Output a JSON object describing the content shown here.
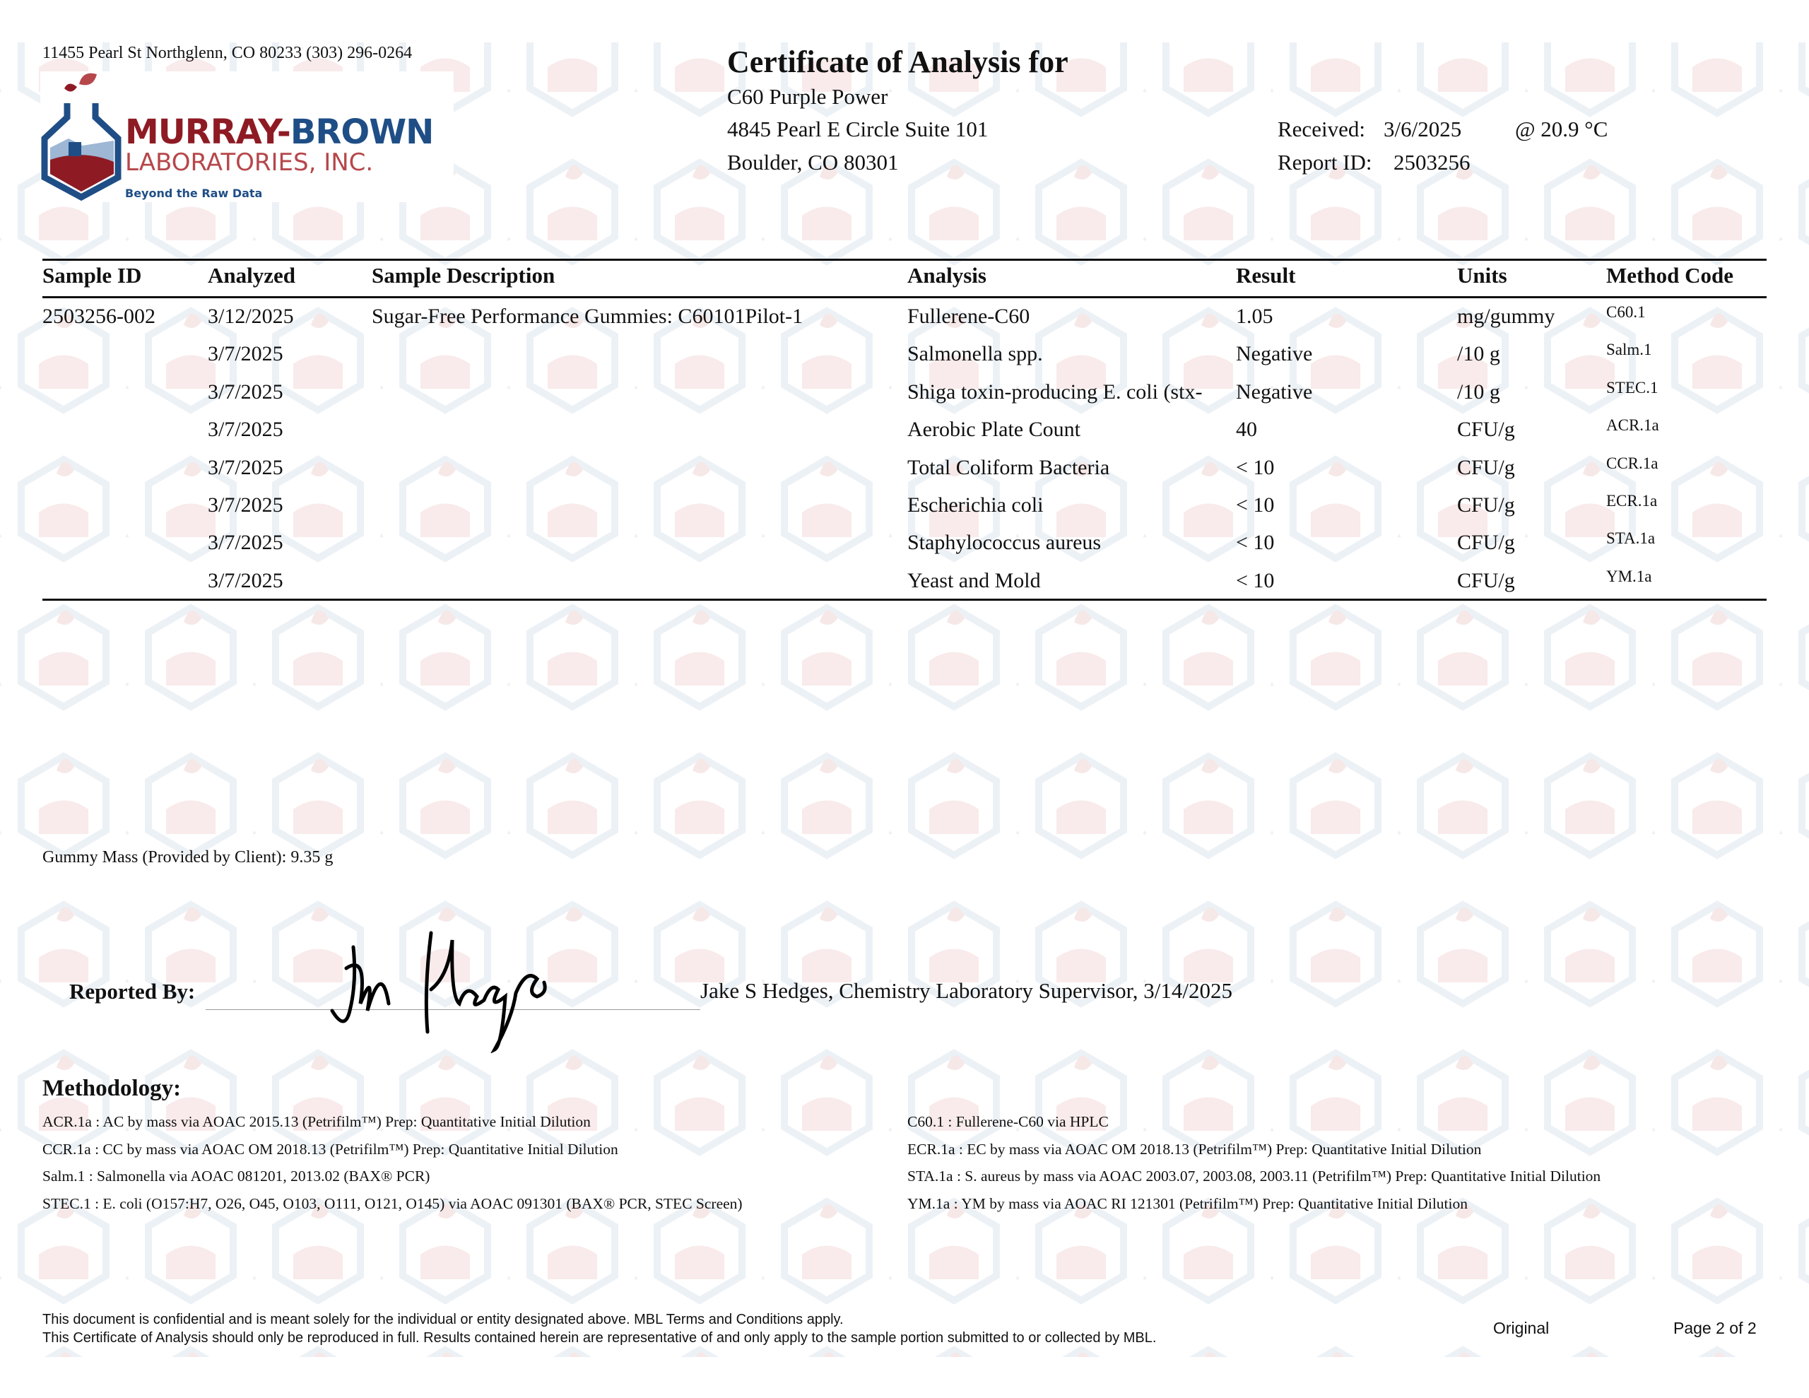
{
  "lab": {
    "address": "11455 Pearl St Northglenn, CO 80233 (303) 296-0264",
    "logo_name_1": "MURRAY-",
    "logo_name_2": "BROWN",
    "logo_sub": "LABORATORIES, INC.",
    "logo_tagline": "Beyond the Raw Data",
    "colors": {
      "red": "#8e1b24",
      "blue": "#1f4e86",
      "light_red": "#b6474b"
    }
  },
  "header": {
    "title": "Certificate of Analysis for",
    "client_name": "C60 Purple Power",
    "client_address_1": "4845 Pearl E Circle Suite 101",
    "client_address_2": "Boulder, CO 80301",
    "received_label": "Received:",
    "received_date": "3/6/2025",
    "received_temp": "@ 20.9 °C",
    "report_id_label": "Report ID:",
    "report_id": "2503256"
  },
  "table": {
    "columns": [
      "Sample ID",
      "Analyzed",
      "Sample Description",
      "Analysis",
      "Result",
      "Units",
      "Method Code"
    ],
    "rows": [
      {
        "sample_id": "2503256-002",
        "analyzed": "3/12/2025",
        "description": "Sugar-Free Performance Gummies: C60101Pilot-1",
        "analysis": "Fullerene-C60",
        "result": "1.05",
        "units": "mg/gummy",
        "method": "C60.1"
      },
      {
        "sample_id": "",
        "analyzed": "3/7/2025",
        "description": "",
        "analysis": "Salmonella spp.",
        "result": "Negative",
        "units": "/10 g",
        "method": "Salm.1"
      },
      {
        "sample_id": "",
        "analyzed": "3/7/2025",
        "description": "",
        "analysis": "Shiga toxin-producing E. coli (stx-",
        "result": "Negative",
        "units": "/10 g",
        "method": "STEC.1"
      },
      {
        "sample_id": "",
        "analyzed": "3/7/2025",
        "description": "",
        "analysis": "Aerobic Plate Count",
        "result": "40",
        "units": "CFU/g",
        "method": "ACR.1a"
      },
      {
        "sample_id": "",
        "analyzed": "3/7/2025",
        "description": "",
        "analysis": "Total Coliform Bacteria",
        "result": "< 10",
        "units": "CFU/g",
        "method": "CCR.1a"
      },
      {
        "sample_id": "",
        "analyzed": "3/7/2025",
        "description": "",
        "analysis": "Escherichia coli",
        "result": "< 10",
        "units": "CFU/g",
        "method": "ECR.1a"
      },
      {
        "sample_id": "",
        "analyzed": "3/7/2025",
        "description": "",
        "analysis": "Staphylococcus aureus",
        "result": "< 10",
        "units": "CFU/g",
        "method": "STA.1a"
      },
      {
        "sample_id": "",
        "analyzed": "3/7/2025",
        "description": "",
        "analysis": "Yeast and Mold",
        "result": "< 10",
        "units": "CFU/g",
        "method": "YM.1a"
      }
    ]
  },
  "note": "Gummy Mass (Provided by Client): 9.35 g",
  "signoff": {
    "label": "Reported By:",
    "signature_text": "Jake Hedges",
    "signer": "Jake S Hedges, Chemistry Laboratory Supervisor, 3/14/2025"
  },
  "methodology": {
    "heading": "Methodology:",
    "left": [
      "ACR.1a :  AC by mass via AOAC 2015.13 (Petrifilm™)  Prep: Quantitative Initial Dilution",
      "CCR.1a :  CC by mass via AOAC OM 2018.13 (Petrifilm™)  Prep: Quantitative Initial Dilution",
      "Salm.1 :  Salmonella via AOAC 081201, 2013.02 (BAX® PCR)",
      "STEC.1 :  E. coli (O157:H7, O26, O45, O103, O111, O121, O145) via AOAC 091301 (BAX® PCR, STEC Screen)"
    ],
    "right": [
      "C60.1 :  Fullerene-C60 via HPLC",
      "ECR.1a :  EC by mass via AOAC OM 2018.13 (Petrifilm™)  Prep: Quantitative Initial Dilution",
      "STA.1a :  S. aureus by mass via AOAC 2003.07, 2003.08, 2003.11 (Petrifilm™)  Prep: Quantitative Initial Dilution",
      "YM.1a :  YM by mass via AOAC RI 121301 (Petrifilm™)  Prep: Quantitative Initial Dilution"
    ]
  },
  "footer": {
    "line1": "This document is confidential and is meant solely for the individual or entity designated above.  MBL Terms and Conditions apply.",
    "line2": "This Certificate of Analysis should only be reproduced in full.  Results contained herein are representative of and only apply to the sample portion submitted to or collected by MBL.",
    "status": "Original",
    "page": "Page 2 of 2"
  }
}
